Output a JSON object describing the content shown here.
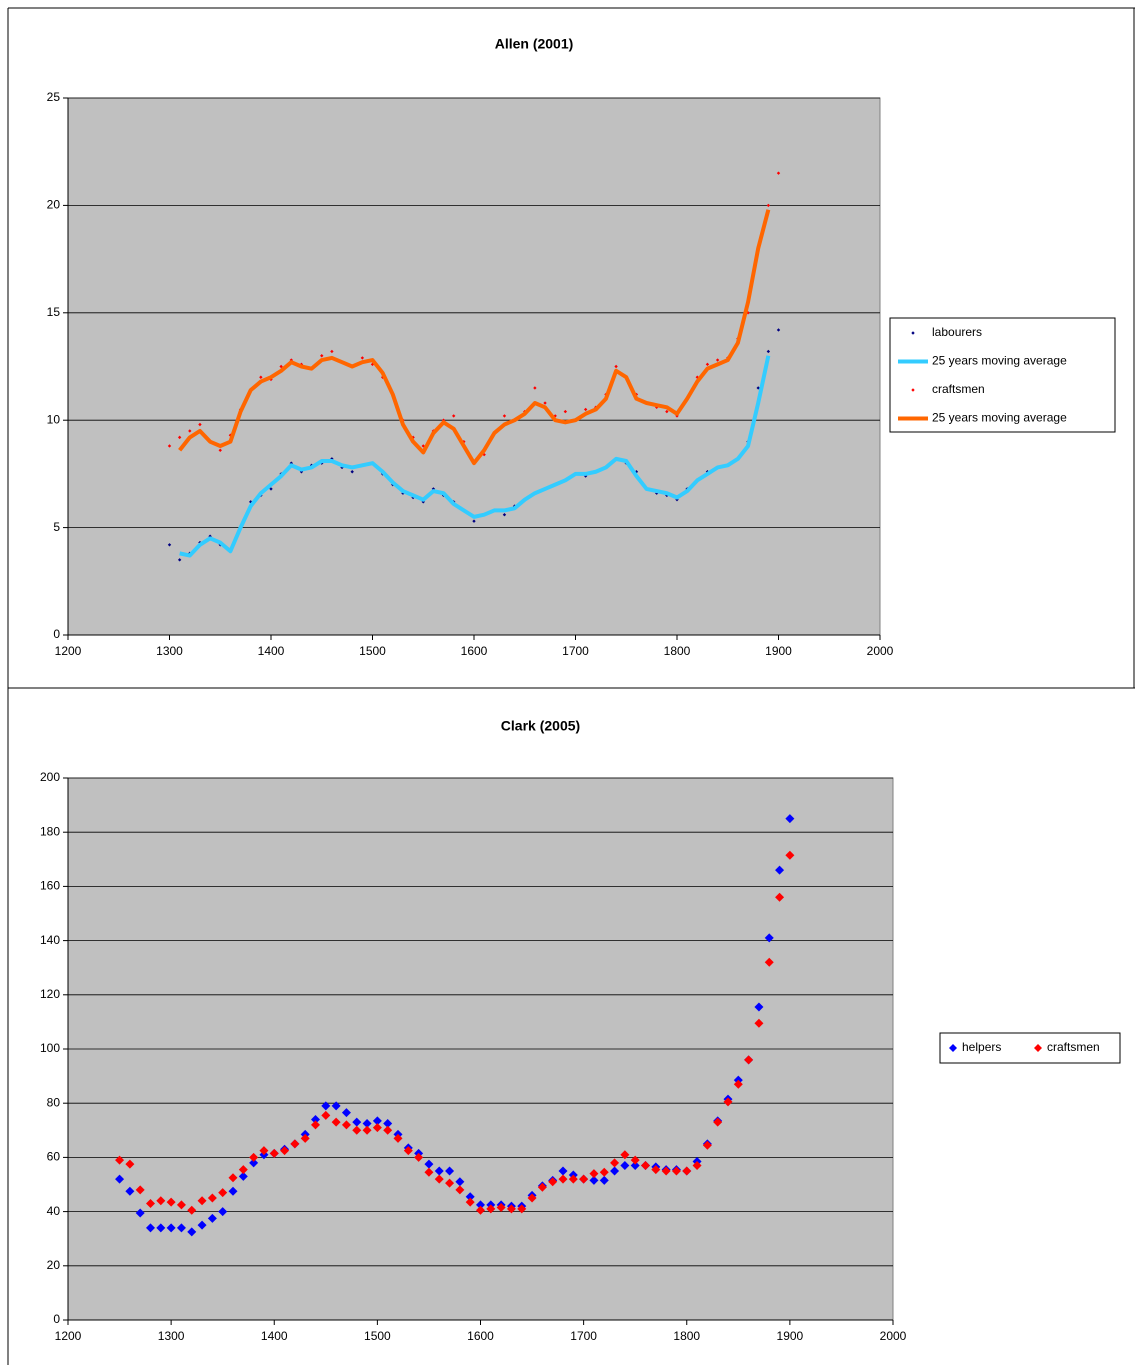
{
  "chart_data": [
    {
      "type": "scatter",
      "title": "Allen (2001)",
      "x": [
        1300,
        1310,
        1320,
        1330,
        1340,
        1350,
        1360,
        1370,
        1380,
        1390,
        1400,
        1410,
        1420,
        1430,
        1440,
        1450,
        1460,
        1470,
        1480,
        1490,
        1500,
        1510,
        1520,
        1530,
        1540,
        1550,
        1560,
        1570,
        1580,
        1590,
        1600,
        1610,
        1620,
        1630,
        1640,
        1650,
        1660,
        1670,
        1680,
        1690,
        1700,
        1710,
        1720,
        1730,
        1740,
        1750,
        1760,
        1770,
        1780,
        1790,
        1800,
        1810,
        1820,
        1830,
        1840,
        1850,
        1860,
        1870,
        1880,
        1890,
        1900
      ],
      "series": [
        {
          "name": "labourers",
          "color": "#000080",
          "style": "markers",
          "values": [
            4.2,
            3.5,
            3.8,
            4.3,
            4.6,
            4.2,
            4.0,
            5.0,
            6.2,
            6.5,
            6.8,
            7.5,
            8.0,
            7.6,
            7.9,
            8.0,
            8.2,
            7.8,
            7.6,
            7.9,
            8.0,
            7.5,
            7.0,
            6.6,
            6.4,
            6.2,
            6.8,
            6.5,
            6.2,
            5.8,
            5.3,
            5.6,
            5.8,
            5.6,
            6.0,
            6.3,
            6.6,
            6.8,
            7.0,
            7.2,
            7.5,
            7.4,
            7.6,
            7.8,
            8.2,
            8.0,
            7.6,
            6.8,
            6.6,
            6.5,
            6.3,
            6.8,
            7.2,
            7.6,
            7.8,
            7.9,
            8.2,
            9.0,
            11.5,
            13.2,
            14.2
          ]
        },
        {
          "name": "25 years moving average",
          "color": "#33ccff",
          "style": "line",
          "values": [
            null,
            3.8,
            3.7,
            4.2,
            4.5,
            4.3,
            3.9,
            5.0,
            6.0,
            6.6,
            7.0,
            7.4,
            7.9,
            7.7,
            7.8,
            8.1,
            8.1,
            7.9,
            7.8,
            7.9,
            8.0,
            7.6,
            7.1,
            6.7,
            6.5,
            6.3,
            6.7,
            6.6,
            6.1,
            5.8,
            5.5,
            5.6,
            5.8,
            5.8,
            5.9,
            6.3,
            6.6,
            6.8,
            7.0,
            7.2,
            7.5,
            7.5,
            7.6,
            7.8,
            8.2,
            8.1,
            7.4,
            6.8,
            6.7,
            6.6,
            6.4,
            6.7,
            7.2,
            7.5,
            7.8,
            7.9,
            8.2,
            8.8,
            10.8,
            13.0,
            null
          ]
        },
        {
          "name": "craftsmen",
          "color": "#ff0000",
          "style": "markers",
          "values": [
            8.8,
            9.2,
            9.5,
            9.8,
            9.0,
            8.6,
            9.3,
            10.5,
            11.4,
            12.0,
            11.9,
            12.5,
            12.8,
            12.6,
            12.4,
            13.0,
            13.2,
            12.7,
            12.5,
            12.9,
            12.6,
            12.0,
            11.2,
            10.0,
            9.2,
            8.8,
            9.5,
            10.0,
            10.2,
            9.0,
            8.0,
            8.4,
            9.4,
            10.2,
            10.0,
            10.4,
            11.5,
            10.8,
            10.2,
            10.4,
            10.0,
            10.5,
            10.6,
            11.2,
            12.5,
            12.0,
            11.2,
            10.8,
            10.6,
            10.4,
            10.2,
            11.0,
            12.0,
            12.6,
            12.8,
            12.9,
            13.8,
            15.0,
            18.0,
            20.0,
            21.5
          ]
        },
        {
          "name": "25 years moving average",
          "color": "#ff6600",
          "style": "line",
          "values": [
            null,
            8.6,
            9.2,
            9.5,
            9.0,
            8.8,
            9.0,
            10.4,
            11.4,
            11.8,
            12.0,
            12.3,
            12.7,
            12.5,
            12.4,
            12.8,
            12.9,
            12.7,
            12.5,
            12.7,
            12.8,
            12.2,
            11.2,
            9.8,
            9.0,
            8.5,
            9.4,
            9.9,
            9.6,
            8.8,
            8.0,
            8.6,
            9.4,
            9.8,
            10.0,
            10.3,
            10.8,
            10.6,
            10.0,
            9.9,
            10.0,
            10.3,
            10.5,
            11.0,
            12.3,
            12.0,
            11.0,
            10.8,
            10.7,
            10.6,
            10.3,
            11.0,
            11.8,
            12.4,
            12.6,
            12.8,
            13.6,
            15.5,
            18.0,
            19.8,
            null
          ]
        }
      ],
      "xlim": [
        1200,
        2000
      ],
      "xticks": [
        1200,
        1300,
        1400,
        1500,
        1600,
        1700,
        1800,
        1900,
        2000
      ],
      "ylim": [
        0,
        25
      ],
      "yticks": [
        0,
        5,
        10,
        15,
        20,
        25
      ],
      "grid": true,
      "legend": "right"
    },
    {
      "type": "scatter",
      "title": "Clark (2005)",
      "x": [
        1250,
        1260,
        1270,
        1280,
        1290,
        1300,
        1310,
        1320,
        1330,
        1340,
        1350,
        1360,
        1370,
        1380,
        1390,
        1400,
        1410,
        1420,
        1430,
        1440,
        1450,
        1460,
        1470,
        1480,
        1490,
        1500,
        1510,
        1520,
        1530,
        1540,
        1550,
        1560,
        1570,
        1580,
        1590,
        1600,
        1610,
        1620,
        1630,
        1640,
        1650,
        1660,
        1670,
        1680,
        1690,
        1700,
        1710,
        1720,
        1730,
        1740,
        1750,
        1760,
        1770,
        1780,
        1790,
        1800,
        1810,
        1820,
        1830,
        1840,
        1850,
        1860,
        1870,
        1880,
        1890,
        1900
      ],
      "series": [
        {
          "name": "helpers",
          "color": "#0000ff",
          "style": "markers",
          "values": [
            52,
            47.5,
            39.5,
            34,
            34,
            34,
            34,
            32.5,
            35,
            37.5,
            40,
            47.5,
            53,
            58,
            61,
            61.5,
            63,
            65,
            68.5,
            74,
            79,
            79,
            76.5,
            73,
            72.5,
            73.5,
            72.5,
            68.5,
            63.5,
            61.5,
            57.5,
            55,
            55,
            51,
            45.5,
            42.5,
            42.5,
            42.5,
            42,
            42,
            46,
            49.5,
            51.5,
            55,
            53.5,
            52,
            51.5,
            51.5,
            55,
            57,
            57,
            57,
            56.5,
            55.5,
            55.5,
            55,
            58.5,
            65,
            73.5,
            81.5,
            88.5,
            96,
            115.5,
            141,
            166,
            185
          ]
        },
        {
          "name": "craftsmen",
          "color": "#ff0000",
          "style": "markers",
          "values": [
            59,
            57.5,
            48,
            43,
            44,
            43.5,
            42.5,
            40.5,
            44,
            45,
            47,
            52.5,
            55.5,
            60,
            62.5,
            61.5,
            62.5,
            65,
            67,
            72,
            75.5,
            73,
            72,
            70,
            70,
            71,
            70,
            67,
            62.5,
            60,
            54.5,
            52,
            50.5,
            48,
            43.5,
            40.5,
            41,
            41.5,
            41,
            41,
            45,
            49,
            51,
            52,
            52,
            52,
            54,
            54.5,
            58,
            61,
            59,
            57,
            55.5,
            55,
            55,
            55,
            57,
            64.5,
            73,
            80.5,
            87,
            96,
            109.5,
            132,
            156,
            171.5
          ]
        }
      ],
      "xlim": [
        1200,
        2000
      ],
      "xticks": [
        1200,
        1300,
        1400,
        1500,
        1600,
        1700,
        1800,
        1900,
        2000
      ],
      "ylim": [
        0,
        200
      ],
      "yticks": [
        0,
        20,
        40,
        60,
        80,
        100,
        120,
        140,
        160,
        180,
        200
      ],
      "grid": true,
      "legend": "right"
    }
  ]
}
